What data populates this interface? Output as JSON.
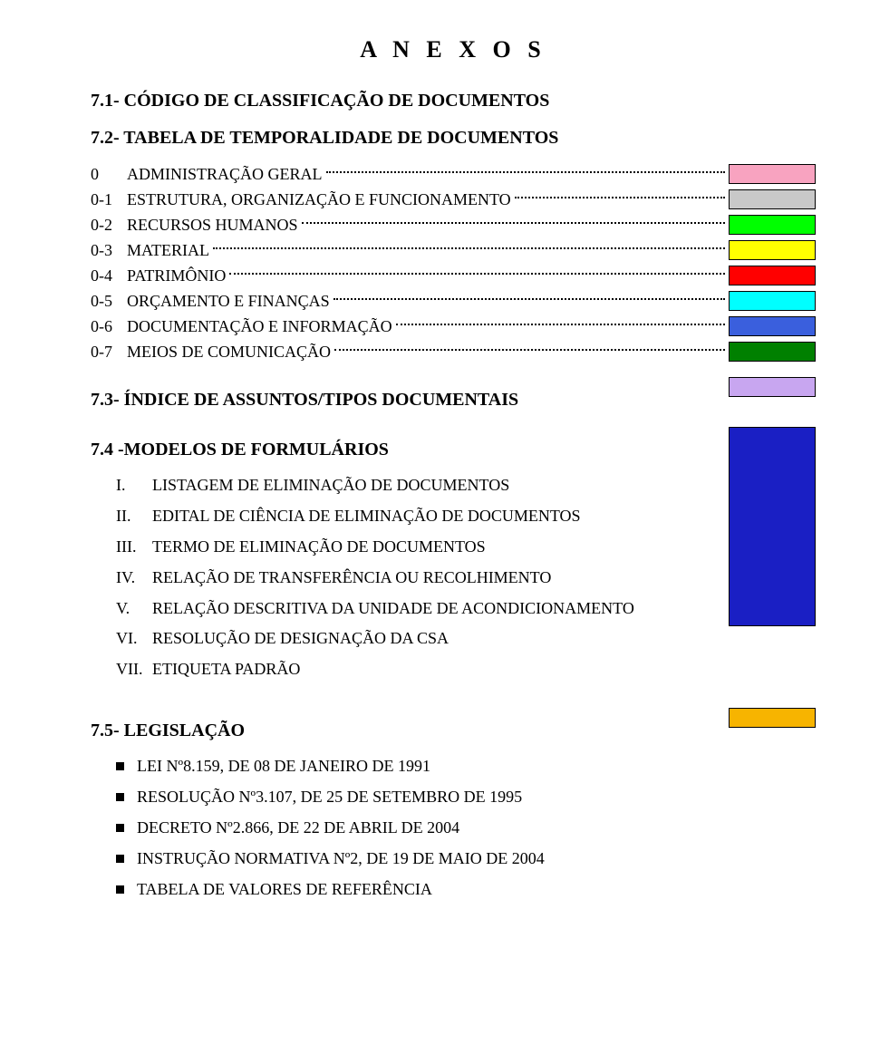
{
  "title": "A N E X O S",
  "section71_heading": "7.1- CÓDIGO DE CLASSIFICAÇÃO DE DOCUMENTOS",
  "section72_heading": "7.2- TABELA DE TEMPORALIDADE DE DOCUMENTOS",
  "section72_items": [
    {
      "num": "0",
      "label": "ADMINISTRAÇÃO GERAL",
      "color": "#f8a3c0"
    },
    {
      "num": "0-1",
      "label": "ESTRUTURA, ORGANIZAÇÃO E FUNCIONAMENTO",
      "color": "#c8c8c8"
    },
    {
      "num": "0-2",
      "label": "RECURSOS HUMANOS",
      "color": "#00ff00"
    },
    {
      "num": "0-3",
      "label": "MATERIAL",
      "color": "#ffff00"
    },
    {
      "num": "0-4",
      "label": "PATRIMÔNIO",
      "color": "#ff0000"
    },
    {
      "num": "0-5",
      "label": "ORÇAMENTO E FINANÇAS",
      "color": "#00ffff"
    },
    {
      "num": "0-6",
      "label": "DOCUMENTAÇÃO E INFORMAÇÃO",
      "color": "#3a5fdd"
    },
    {
      "num": "0-7",
      "label": "MEIOS DE COMUNICAÇÃO",
      "color": "#008000"
    }
  ],
  "section73_heading": "7.3- ÍNDICE DE ASSUNTOS/TIPOS DOCUMENTAIS",
  "section73_swatch_color": "#c8a6f0",
  "section74_heading": "7.4 -MODELOS DE FORMULÁRIOS",
  "section74_swatch_color": "#1a1fc4",
  "section74_items": [
    {
      "num": "I.",
      "text": "LISTAGEM DE  ELIMINAÇÃO DE DOCUMENTOS"
    },
    {
      "num": "II.",
      "text": "EDITAL DE CIÊNCIA DE ELIMINAÇÃO DE DOCUMENTOS"
    },
    {
      "num": "III.",
      "text": "TERMO DE ELIMINAÇÃO DE DOCUMENTOS"
    },
    {
      "num": "IV.",
      "text": "RELAÇÃO DE TRANSFERÊNCIA OU RECOLHIMENTO"
    },
    {
      "num": "V.",
      "text": "RELAÇÃO DESCRITIVA DA UNIDADE DE ACONDICIONAMENTO"
    },
    {
      "num": "VI.",
      "text": "RESOLUÇÃO DE DESIGNAÇÃO DA CSA"
    },
    {
      "num": "VII.",
      "text": "ETIQUETA PADRÃO"
    }
  ],
  "section75_heading": "7.5- LEGISLAÇÃO",
  "section75_swatch_color": "#f7b400",
  "section75_items": [
    "LEI Nº8.159, DE 08 DE JANEIRO DE 1991",
    "RESOLUÇÃO Nº3.107, DE 25 DE SETEMBRO DE 1995",
    "DECRETO Nº2.866, DE 22 DE ABRIL DE 2004",
    "INSTRUÇÃO NORMATIVA Nº2, DE 19 DE MAIO DE 2004",
    "TABELA DE VALORES DE REFERÊNCIA"
  ]
}
